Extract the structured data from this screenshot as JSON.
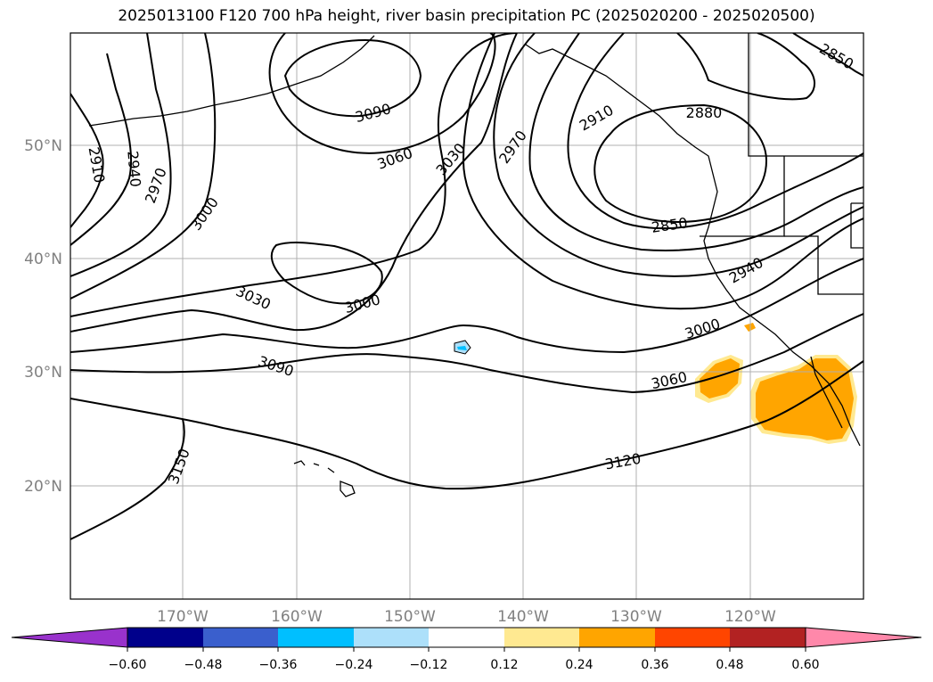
{
  "title": "2025013100 F120 700 hPa height, river basin precipitation PC (2025020200 - 2025020500)",
  "lat_labels": [
    "50°N",
    "40°N",
    "30°N",
    "20°N"
  ],
  "lon_labels": [
    "170°W",
    "160°W",
    "150°W",
    "140°W",
    "130°W",
    "120°W"
  ],
  "contour_labels": [
    "3090",
    "3060",
    "3030",
    "2970",
    "2910",
    "2880",
    "2850",
    "2850",
    "2910",
    "2940",
    "2970",
    "3000",
    "3030",
    "3000",
    "3090",
    "3000",
    "2940",
    "3060",
    "3120",
    "3150"
  ],
  "colorbar": {
    "ticks": [
      "−0.60",
      "−0.48",
      "−0.36",
      "−0.24",
      "−0.12",
      "0.12",
      "0.24",
      "0.36",
      "0.48",
      "0.60"
    ],
    "colors": [
      "#9932CC",
      "#00008B",
      "#3A5FCD",
      "#00BFFF",
      "#ADE0FA",
      "#FFFFFF",
      "#FFE991",
      "#FFA500",
      "#FF4500",
      "#B22222",
      "#FF88AA"
    ]
  },
  "shading": {
    "positive_color": "#FFA500",
    "light_color": "#FFE991",
    "negative_color": "#00BFFF"
  }
}
